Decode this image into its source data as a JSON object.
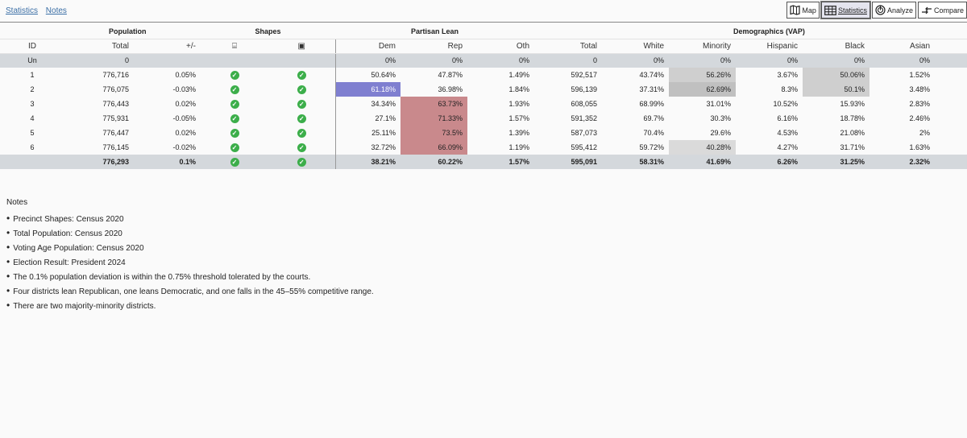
{
  "nav": {
    "statistics": "Statistics",
    "notes": "Notes"
  },
  "toolbar": {
    "map": "Map",
    "statistics": "Statistics",
    "analyze": "Analyze",
    "compare": "Compare"
  },
  "groups": {
    "population": "Population",
    "shapes": "Shapes",
    "partisan": "Partisan Lean",
    "demographics": "Demographics (VAP)"
  },
  "headers": {
    "id": "ID",
    "total": "Total",
    "deviation": "+/-",
    "dem": "Dem",
    "rep": "Rep",
    "oth": "Oth",
    "vap_total": "Total",
    "white": "White",
    "minority": "Minority",
    "hispanic": "Hispanic",
    "black": "Black",
    "asian": "Asian"
  },
  "unassigned": {
    "id": "Un",
    "total": "0",
    "dem": "0%",
    "rep": "0%",
    "oth": "0%",
    "vap_total": "0",
    "white": "0%",
    "minority": "0%",
    "hispanic": "0%",
    "black": "0%",
    "asian": "0%"
  },
  "rows": [
    {
      "id": "1",
      "total": "776,716",
      "dev": "0.05%",
      "dem": "50.64%",
      "rep": "47.87%",
      "oth": "1.49%",
      "vap": "592,517",
      "white": "43.74%",
      "minority": "56.26%",
      "hispanic": "3.67%",
      "black": "50.06%",
      "asian": "1.52%"
    },
    {
      "id": "2",
      "total": "776,075",
      "dev": "-0.03%",
      "dem": "61.18%",
      "rep": "36.98%",
      "oth": "1.84%",
      "vap": "596,139",
      "white": "37.31%",
      "minority": "62.69%",
      "hispanic": "8.3%",
      "black": "50.1%",
      "asian": "3.48%"
    },
    {
      "id": "3",
      "total": "776,443",
      "dev": "0.02%",
      "dem": "34.34%",
      "rep": "63.73%",
      "oth": "1.93%",
      "vap": "608,055",
      "white": "68.99%",
      "minority": "31.01%",
      "hispanic": "10.52%",
      "black": "15.93%",
      "asian": "2.83%"
    },
    {
      "id": "4",
      "total": "775,931",
      "dev": "-0.05%",
      "dem": "27.1%",
      "rep": "71.33%",
      "oth": "1.57%",
      "vap": "591,352",
      "white": "69.7%",
      "minority": "30.3%",
      "hispanic": "6.16%",
      "black": "18.78%",
      "asian": "2.46%"
    },
    {
      "id": "5",
      "total": "776,447",
      "dev": "0.02%",
      "dem": "25.11%",
      "rep": "73.5%",
      "oth": "1.39%",
      "vap": "587,073",
      "white": "70.4%",
      "minority": "29.6%",
      "hispanic": "4.53%",
      "black": "21.08%",
      "asian": "2%"
    },
    {
      "id": "6",
      "total": "776,145",
      "dev": "-0.02%",
      "dem": "32.72%",
      "rep": "66.09%",
      "oth": "1.19%",
      "vap": "595,412",
      "white": "59.72%",
      "minority": "40.28%",
      "hispanic": "4.27%",
      "black": "31.71%",
      "asian": "1.63%"
    }
  ],
  "totals": {
    "total": "776,293",
    "dev": "0.1%",
    "dem": "38.21%",
    "rep": "60.22%",
    "oth": "1.57%",
    "vap": "595,091",
    "white": "58.31%",
    "minority": "41.69%",
    "hispanic": "6.26%",
    "black": "31.25%",
    "asian": "2.32%"
  },
  "notes": {
    "title": "Notes",
    "items": [
      "Precinct Shapes: Census 2020",
      "Total Population: Census 2020",
      "Voting Age Population: Census 2020",
      "Election Result: President 2024",
      "The 0.1% population deviation is within the 0.75% threshold tolerated by the courts.",
      "Four districts lean Republican, one leans Democratic, and one falls in the 45–55% competitive range.",
      "There are two majority-minority districts."
    ]
  }
}
